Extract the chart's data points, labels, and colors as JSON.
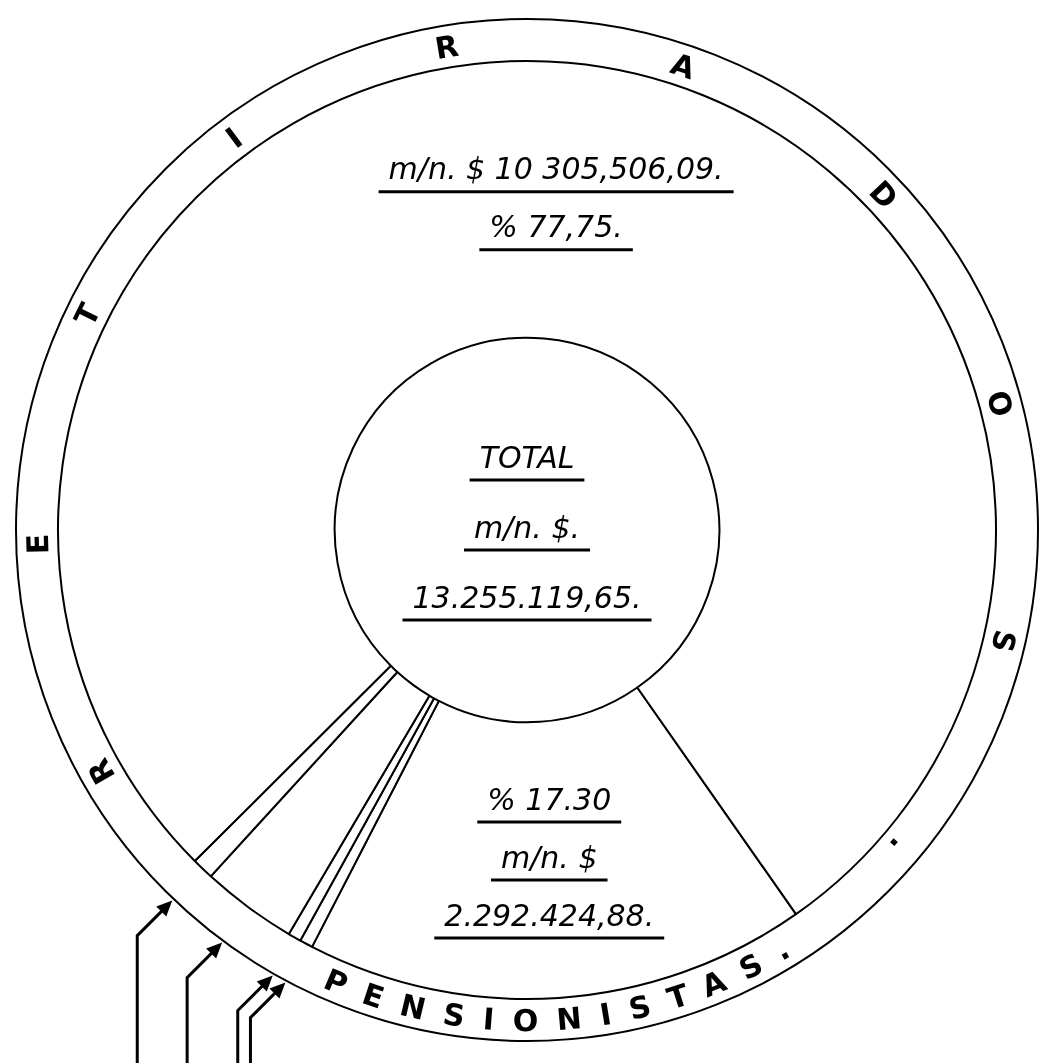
{
  "chart_data": {
    "type": "donut",
    "categories": [
      "PENSIONISTAS.",
      null,
      null,
      null,
      null,
      "RETIRADOS."
    ],
    "values": [
      17.3,
      0.45,
      0.45,
      3.3,
      0.75,
      77.75
    ],
    "colors": [
      "#ffffff",
      "#ffffff",
      "#ffffff",
      "#ffffff",
      "#ffffff",
      "#ffffff"
    ],
    "value_labels": [
      "% 17.30\nm/n. $\n2.292.424,88.",
      null,
      null,
      null,
      null,
      "m/n. $ 10 305,506,09.\n% 77,75."
    ],
    "annotations": [
      "TOTAL",
      "m/n. $.",
      "13.255.119,65."
    ]
  }
}
